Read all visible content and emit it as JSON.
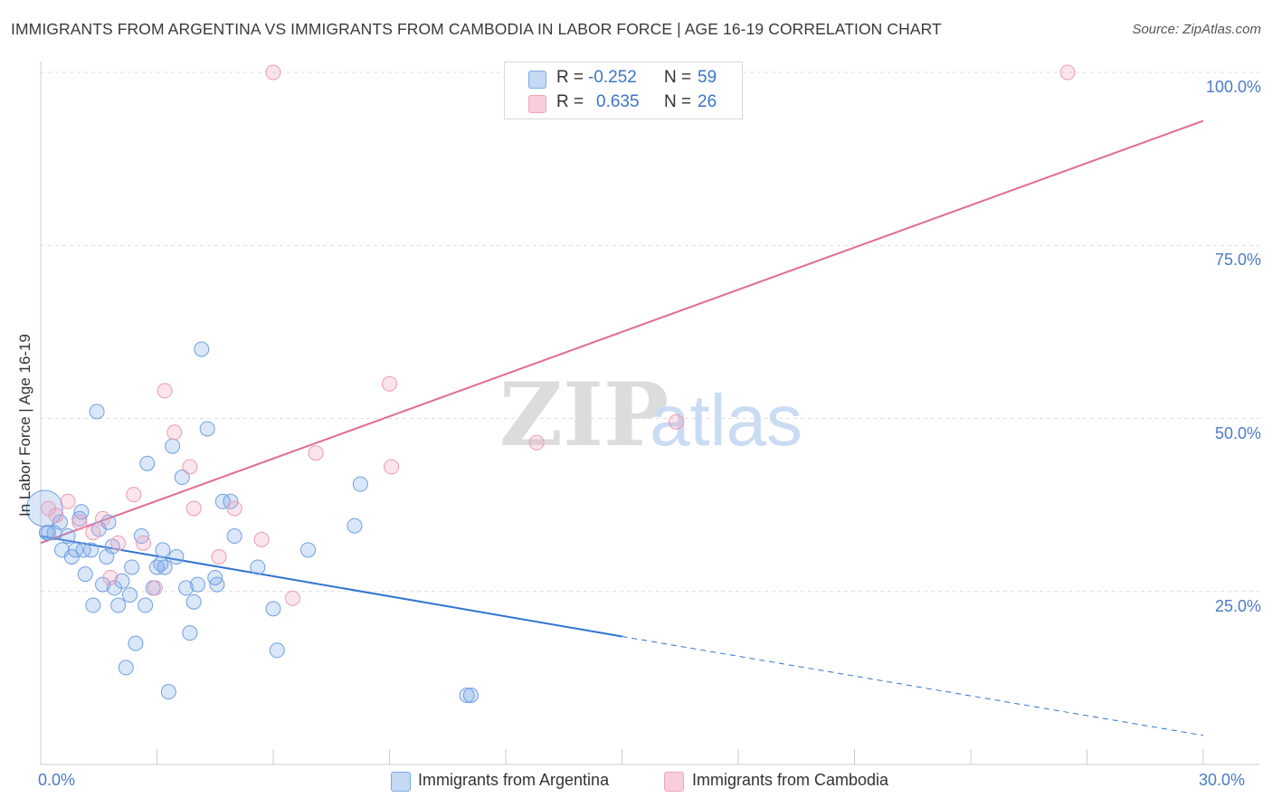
{
  "title": "IMMIGRANTS FROM ARGENTINA VS IMMIGRANTS FROM CAMBODIA IN LABOR FORCE | AGE 16-19 CORRELATION CHART",
  "source": "Source: ZipAtlas.com",
  "watermark": {
    "zip": "ZIP",
    "atlas": "atlas"
  },
  "colors": {
    "blue": "#7aaae8",
    "blue_line": "#2f74d0",
    "pink": "#f2a3bc",
    "pink_line": "#e06b94",
    "tick": "#4a7cc9"
  },
  "legend": {
    "r_label": "R =",
    "n_label": "N =",
    "rows": [
      {
        "r": "-0.252",
        "n": "59"
      },
      {
        "r": "0.635",
        "n": "26"
      }
    ]
  },
  "chart_data": {
    "type": "scatter",
    "ylabel": "In Labor Force | Age 16-19",
    "xlim": [
      0,
      30
    ],
    "ylim": [
      0,
      100
    ],
    "x_ticks": [
      "0.0%",
      "30.0%"
    ],
    "y_ticks": [
      {
        "v": 100,
        "label": "100.0%"
      },
      {
        "v": 75,
        "label": "75.0%"
      },
      {
        "v": 50,
        "label": "50.0%"
      },
      {
        "v": 25,
        "label": "25.0%"
      }
    ],
    "series": [
      {
        "name": "Immigrants from Argentina",
        "color": "blue",
        "trend": {
          "x0": 0,
          "y0": 33.0,
          "x1": 15.0,
          "y1": 18.5,
          "x_dash_end": 30,
          "y_dash_end": 4.2
        },
        "points": [
          [
            0.1,
            37
          ],
          [
            0.2,
            33.5
          ],
          [
            0.35,
            33.5
          ],
          [
            0.5,
            35
          ],
          [
            0.55,
            31
          ],
          [
            0.7,
            33
          ],
          [
            0.8,
            30
          ],
          [
            0.9,
            31
          ],
          [
            1.0,
            35.5
          ],
          [
            1.05,
            36.5
          ],
          [
            1.1,
            31
          ],
          [
            1.15,
            27.5
          ],
          [
            1.3,
            31
          ],
          [
            1.35,
            23
          ],
          [
            1.5,
            34
          ],
          [
            1.45,
            51
          ],
          [
            1.6,
            26
          ],
          [
            1.7,
            30
          ],
          [
            1.75,
            35
          ],
          [
            1.85,
            31.5
          ],
          [
            1.9,
            25.5
          ],
          [
            2.0,
            23
          ],
          [
            2.1,
            26.5
          ],
          [
            2.2,
            14
          ],
          [
            2.3,
            24.5
          ],
          [
            2.35,
            28.5
          ],
          [
            2.45,
            17.5
          ],
          [
            2.6,
            33
          ],
          [
            2.7,
            23
          ],
          [
            2.75,
            43.5
          ],
          [
            2.9,
            25.5
          ],
          [
            3.0,
            28.5
          ],
          [
            3.1,
            29
          ],
          [
            3.15,
            31
          ],
          [
            3.2,
            28.5
          ],
          [
            3.3,
            10.5
          ],
          [
            3.4,
            46
          ],
          [
            3.5,
            30
          ],
          [
            3.65,
            41.5
          ],
          [
            3.75,
            25.5
          ],
          [
            3.85,
            19
          ],
          [
            3.95,
            23.5
          ],
          [
            4.05,
            26
          ],
          [
            4.15,
            60
          ],
          [
            4.3,
            48.5
          ],
          [
            4.55,
            26
          ],
          [
            4.5,
            27
          ],
          [
            4.7,
            38
          ],
          [
            4.9,
            38
          ],
          [
            5.0,
            33
          ],
          [
            5.6,
            28.5
          ],
          [
            6.0,
            22.5
          ],
          [
            6.1,
            16.5
          ],
          [
            6.9,
            31
          ],
          [
            8.1,
            34.5
          ],
          [
            8.25,
            40.5
          ],
          [
            11.0,
            10
          ],
          [
            11.1,
            10
          ],
          [
            0.15,
            33.5
          ]
        ]
      },
      {
        "name": "Immigrants from Cambodia",
        "color": "pink",
        "trend": {
          "x0": 0,
          "y0": 32.0,
          "x1": 30,
          "y1": 93.0
        },
        "points": [
          [
            0.2,
            37
          ],
          [
            0.4,
            36
          ],
          [
            0.7,
            38
          ],
          [
            1.0,
            35
          ],
          [
            1.35,
            33.5
          ],
          [
            1.6,
            35.5
          ],
          [
            1.8,
            27
          ],
          [
            2.0,
            32
          ],
          [
            2.4,
            39
          ],
          [
            2.65,
            32
          ],
          [
            2.95,
            25.5
          ],
          [
            3.2,
            54
          ],
          [
            3.45,
            48
          ],
          [
            3.85,
            43
          ],
          [
            3.95,
            37
          ],
          [
            4.6,
            30
          ],
          [
            5.0,
            37
          ],
          [
            5.7,
            32.5
          ],
          [
            6.0,
            100
          ],
          [
            6.5,
            24
          ],
          [
            7.1,
            45
          ],
          [
            9.0,
            55
          ],
          [
            9.05,
            43
          ],
          [
            12.8,
            46.5
          ],
          [
            16.4,
            49.5
          ],
          [
            26.5,
            100
          ]
        ]
      }
    ]
  },
  "bottom_legend": [
    "Immigrants from Argentina",
    "Immigrants from Cambodia"
  ]
}
